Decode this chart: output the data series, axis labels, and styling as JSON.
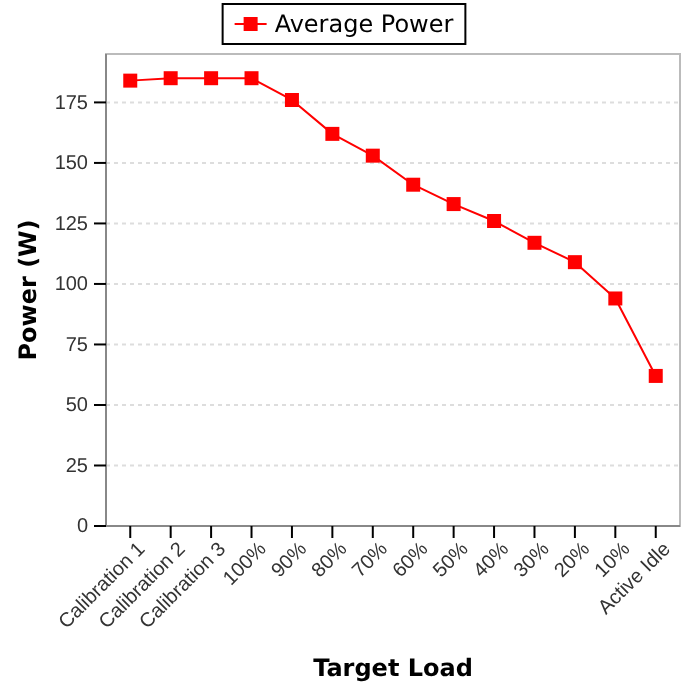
{
  "chart_data": {
    "type": "line",
    "xlabel": "Target Load",
    "ylabel": "Power (W)",
    "categories": [
      "Calibration 1",
      "Calibration 2",
      "Calibration 3",
      "100%",
      "90%",
      "80%",
      "70%",
      "60%",
      "50%",
      "40%",
      "30%",
      "20%",
      "10%",
      "Active Idle"
    ],
    "series": [
      {
        "name": "Average Power",
        "color": "#ff0000",
        "values": [
          184,
          185,
          185,
          185,
          176,
          162,
          153,
          141,
          133,
          126,
          117,
          109,
          94,
          62
        ]
      }
    ],
    "ylim": [
      0,
      195
    ],
    "yticks": [
      0,
      25,
      50,
      75,
      100,
      125,
      150,
      175
    ],
    "grid": "y",
    "legend": "top",
    "marker": "square",
    "line_style": "solid"
  }
}
